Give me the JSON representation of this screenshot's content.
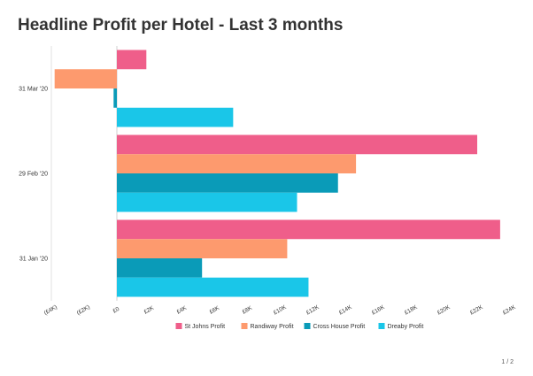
{
  "title": "Headline Profit per Hotel - Last 3 months",
  "page_number": "1 / 2",
  "chart_data": {
    "type": "bar",
    "orientation": "horizontal",
    "categories": [
      "31 Mar '20",
      "29 Feb '20",
      "31 Jan '20"
    ],
    "series": [
      {
        "name": "St Johns Profit",
        "color": "#ef5e8a",
        "values": [
          1800,
          22000,
          23400
        ]
      },
      {
        "name": "Randiway Profit",
        "color": "#fd9a6e",
        "values": [
          -3800,
          14600,
          10400
        ]
      },
      {
        "name": "Cross House Profit",
        "color": "#0a9bb8",
        "values": [
          -200,
          13500,
          5200
        ]
      },
      {
        "name": "Dreaby Profit",
        "color": "#1ac6e8",
        "values": [
          7100,
          11000,
          11700
        ]
      }
    ],
    "xlim": [
      -4000,
      24000
    ],
    "x_ticks": [
      -4000,
      -2000,
      0,
      2000,
      4000,
      6000,
      8000,
      10000,
      12000,
      14000,
      16000,
      18000,
      20000,
      22000,
      24000
    ],
    "x_tick_labels": [
      "(£4K)",
      "(£2K)",
      "£0",
      "£2K",
      "£4K",
      "£6K",
      "£8K",
      "£10K",
      "£12K",
      "£14K",
      "£16K",
      "£18K",
      "£20K",
      "£22K",
      "£24K"
    ],
    "xlabel": "",
    "ylabel": "",
    "legend_position": "bottom",
    "grid": false
  }
}
